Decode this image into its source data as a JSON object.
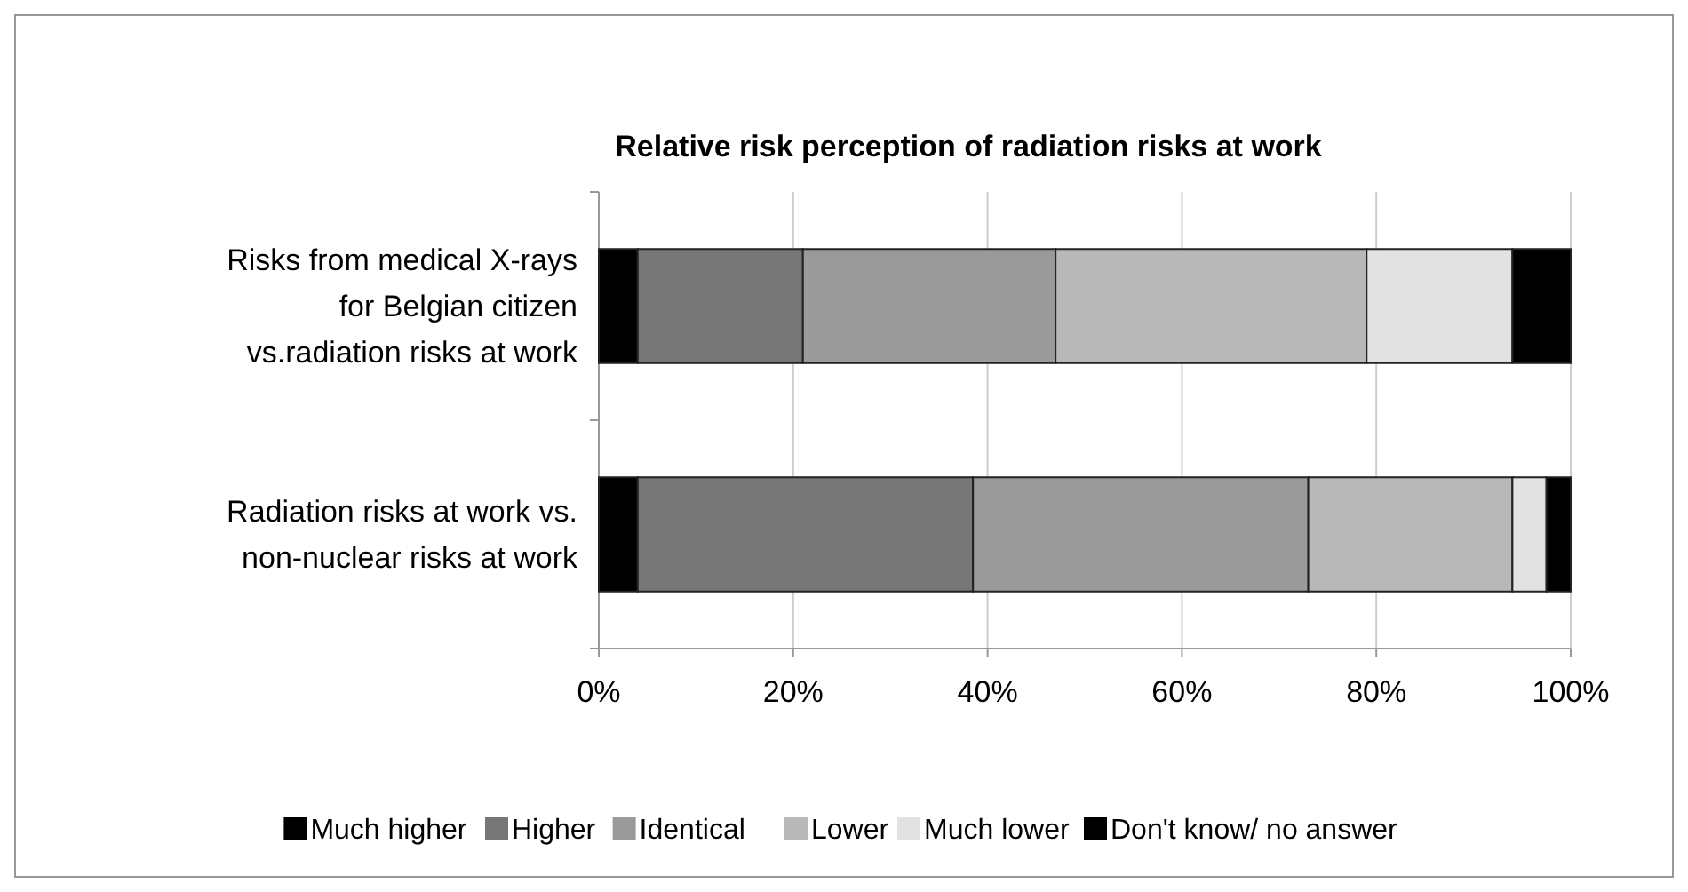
{
  "chart_data": {
    "type": "bar",
    "orientation": "horizontal",
    "stacked": true,
    "title": "Relative risk perception of radiation risks at work",
    "categories": [
      "Risks from medical X-rays\nfor Belgian citizen\nvs.radiation risks at work",
      "Radiation risks at work vs.\nnon-nuclear risks at work"
    ],
    "series": [
      {
        "name": "Much higher",
        "color": "#000000",
        "values": [
          0.04,
          0.04
        ]
      },
      {
        "name": "Higher",
        "color": "#777777",
        "values": [
          0.17,
          0.345
        ]
      },
      {
        "name": "Identical",
        "color": "#9a9a9a",
        "values": [
          0.26,
          0.345
        ]
      },
      {
        "name": "Lower",
        "color": "#b8b8b8",
        "values": [
          0.32,
          0.21
        ]
      },
      {
        "name": "Much lower",
        "color": "#e2e2e2",
        "values": [
          0.15,
          0.035
        ]
      },
      {
        "name": "Don't know/ no answer",
        "color": "#000000",
        "values": [
          0.06,
          0.025
        ]
      }
    ],
    "xlim": [
      0,
      1
    ],
    "xticks": [
      {
        "value": 0,
        "label": "0%"
      },
      {
        "value": 0.2,
        "label": "20%"
      },
      {
        "value": 0.4,
        "label": "40%"
      },
      {
        "value": 0.6,
        "label": "60%"
      },
      {
        "value": 0.8,
        "label": "80%"
      },
      {
        "value": 1,
        "label": "100%"
      }
    ],
    "grid": "x",
    "legend": "bottom"
  }
}
